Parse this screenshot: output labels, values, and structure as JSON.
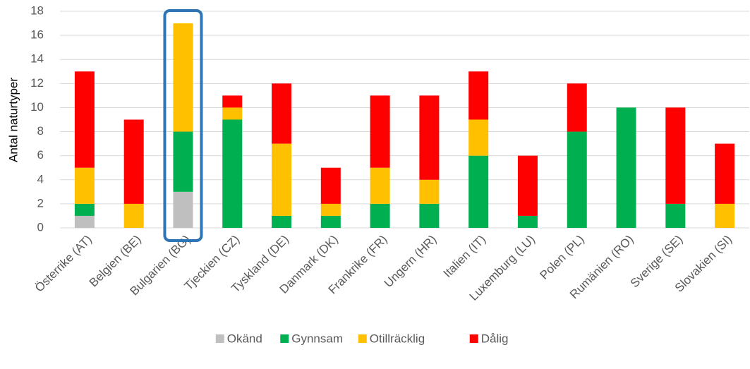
{
  "chart_data": {
    "type": "stacked_bar",
    "y_label": "Antal naturtyper",
    "categories": [
      "Österrike (AT)",
      "Belgien (BE)",
      "Bulgarien (BG)",
      "Tjeckien (CZ)",
      "Tyskland (DE)",
      "Danmark (DK)",
      "Frankrike (FR)",
      "Ungern (HR)",
      "Italien (IT)",
      "Luxemburg (LU)",
      "Polen (PL)",
      "Rumänien (RO)",
      "Sverige (SE)",
      "Slovakien (SI)"
    ],
    "series": [
      {
        "name": "Okänd",
        "color": "#bfbfbf",
        "values": [
          1,
          0,
          3,
          0,
          0,
          0,
          0,
          0,
          0,
          0,
          0,
          0,
          0,
          0
        ]
      },
      {
        "name": "Gynnsam",
        "color": "#00b050",
        "values": [
          1,
          0,
          5,
          9,
          1,
          1,
          2,
          2,
          6,
          1,
          8,
          10,
          2,
          0
        ]
      },
      {
        "name": "Otillräcklig",
        "color": "#ffc000",
        "values": [
          3,
          2,
          9,
          1,
          6,
          1,
          3,
          2,
          3,
          0,
          0,
          0,
          0,
          2
        ]
      },
      {
        "name": "Dålig",
        "color": "#ff0000",
        "values": [
          8,
          7,
          0,
          1,
          5,
          3,
          6,
          7,
          4,
          5,
          4,
          0,
          8,
          5
        ]
      }
    ],
    "ylim": [
      0,
      18
    ],
    "yticks": [
      0,
      2,
      4,
      6,
      8,
      10,
      12,
      14,
      16,
      18
    ],
    "grid": true,
    "legend": "bottom"
  }
}
